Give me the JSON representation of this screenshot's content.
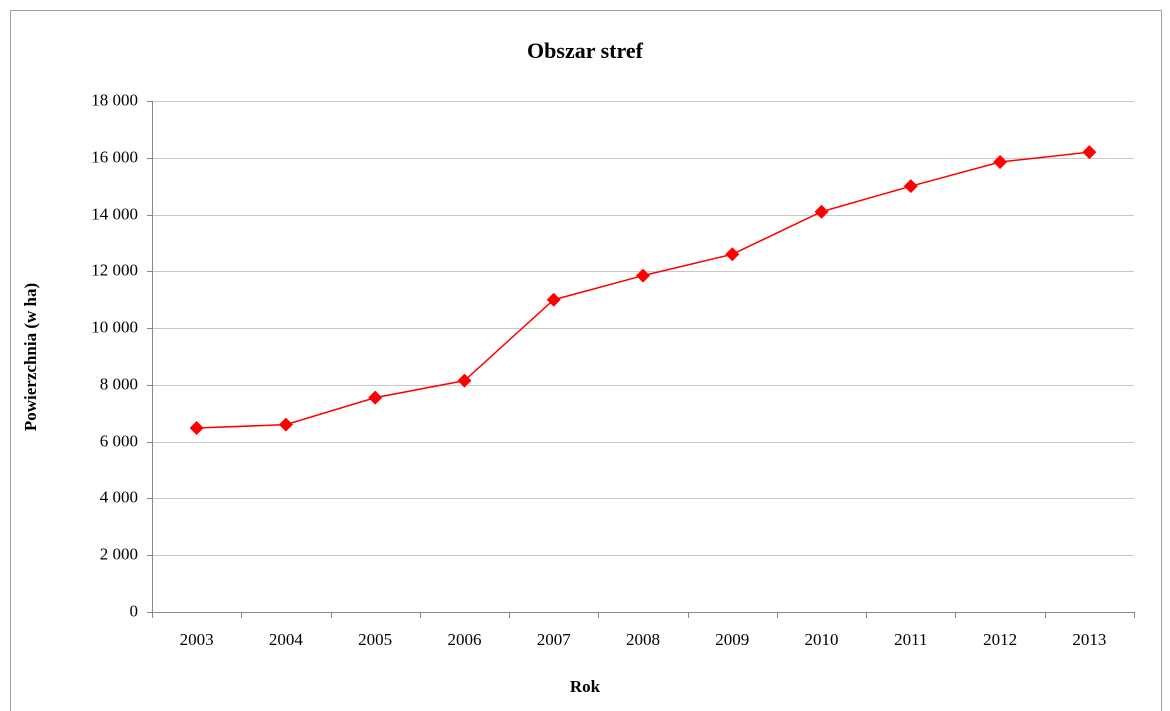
{
  "chart_data": {
    "type": "line",
    "title": "Obszar stref",
    "x_label": "Rok",
    "y_label": "Powierzchnia (w ha)",
    "categories": [
      "2003",
      "2004",
      "2005",
      "2006",
      "2007",
      "2008",
      "2009",
      "2010",
      "2011",
      "2012",
      "2013"
    ],
    "series": [
      {
        "name": "Obszar stref",
        "color": "#ff0000",
        "values": [
          6480,
          6600,
          7550,
          8150,
          11000,
          11850,
          12600,
          14100,
          15000,
          15850,
          16200
        ]
      }
    ],
    "ylim": [
      0,
      18000
    ],
    "yticks": [
      0,
      {
        "value": 2000,
        "label": "2 000"
      },
      {
        "value": 4000,
        "label": "4 000"
      },
      {
        "value": 6000,
        "label": "6 000"
      },
      {
        "value": 8000,
        "label": "8 000"
      },
      {
        "value": 10000,
        "label": "10 000"
      },
      {
        "value": 12000,
        "label": "12 000"
      },
      {
        "value": 14000,
        "label": "14 000"
      },
      {
        "value": 16000,
        "label": "16 000"
      },
      {
        "value": 18000,
        "label": "18 000"
      }
    ],
    "grid": true
  }
}
